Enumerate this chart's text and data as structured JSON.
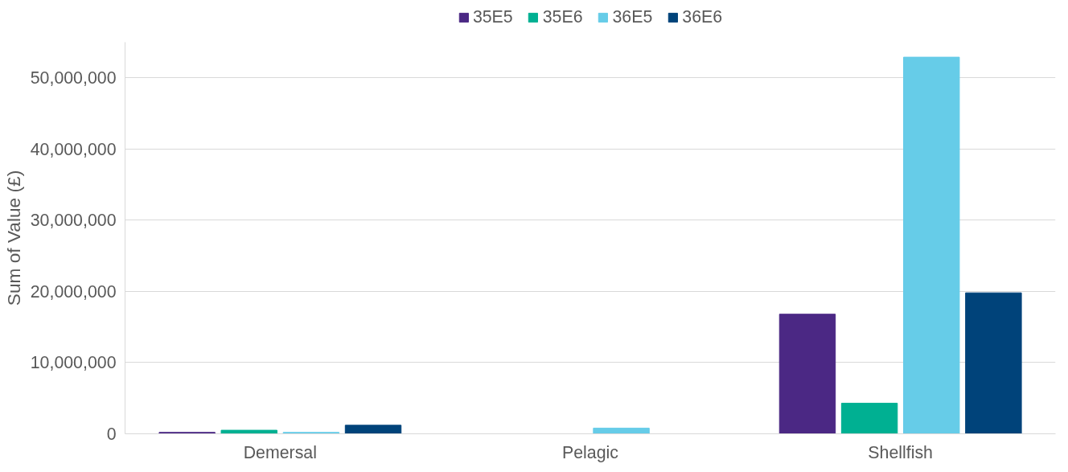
{
  "chart_data": {
    "type": "bar",
    "categories": [
      "Demersal",
      "Pelagic",
      "Shellfish"
    ],
    "ylabel": "Sum of Value (£)",
    "ylim": [
      0,
      55000000
    ],
    "yticks": [
      {
        "value": 0,
        "label": "0"
      },
      {
        "value": 10000000,
        "label": "10,000,000"
      },
      {
        "value": 20000000,
        "label": "20,000,000"
      },
      {
        "value": 30000000,
        "label": "30,000,000"
      },
      {
        "value": 40000000,
        "label": "40,000,000"
      },
      {
        "value": 50000000,
        "label": "50,000,000"
      }
    ],
    "grid": "y",
    "legend": "top",
    "series": [
      {
        "name": "35E5",
        "color": "#4b2884",
        "values": [
          200000,
          0,
          16800000
        ]
      },
      {
        "name": "35E6",
        "color": "#00b092",
        "values": [
          500000,
          0,
          4300000
        ]
      },
      {
        "name": "36E5",
        "color": "#66cce8",
        "values": [
          200000,
          800000,
          52900000
        ]
      },
      {
        "name": "36E6",
        "color": "#00437a",
        "values": [
          1200000,
          0,
          19800000
        ]
      }
    ]
  }
}
